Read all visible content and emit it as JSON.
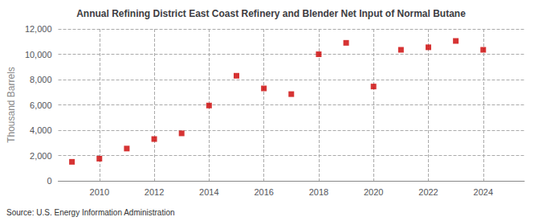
{
  "chart_data": {
    "type": "scatter",
    "title": "Annual Refining District East Coast Refinery and Blender Net Input of Normal Butane",
    "ylabel": "Thousand Barrels",
    "source": "Source: U.S. Energy Information Administration",
    "x": [
      2009,
      2010,
      2011,
      2012,
      2013,
      2014,
      2015,
      2016,
      2017,
      2018,
      2019,
      2020,
      2021,
      2022,
      2023,
      2024
    ],
    "values": [
      1500,
      1750,
      2550,
      3300,
      3750,
      5950,
      8300,
      7300,
      6850,
      10000,
      10900,
      7450,
      10350,
      10550,
      11050,
      10350
    ],
    "color": "#cc0000",
    "marker": "square",
    "xlim": [
      2008.5,
      2025.5
    ],
    "xticks": [
      2010,
      2012,
      2014,
      2016,
      2018,
      2020,
      2022,
      2024
    ],
    "ylim": [
      0,
      12000
    ],
    "yticks": [
      0,
      {
        "value": 2000,
        "label": "2,000"
      },
      {
        "value": 4000,
        "label": "4,000"
      },
      {
        "value": 6000,
        "label": "6,000"
      },
      {
        "value": 8000,
        "label": "8,000"
      },
      {
        "value": 10000,
        "label": "10,000"
      },
      {
        "value": 12000,
        "label": "12,000"
      }
    ],
    "grid": true
  }
}
